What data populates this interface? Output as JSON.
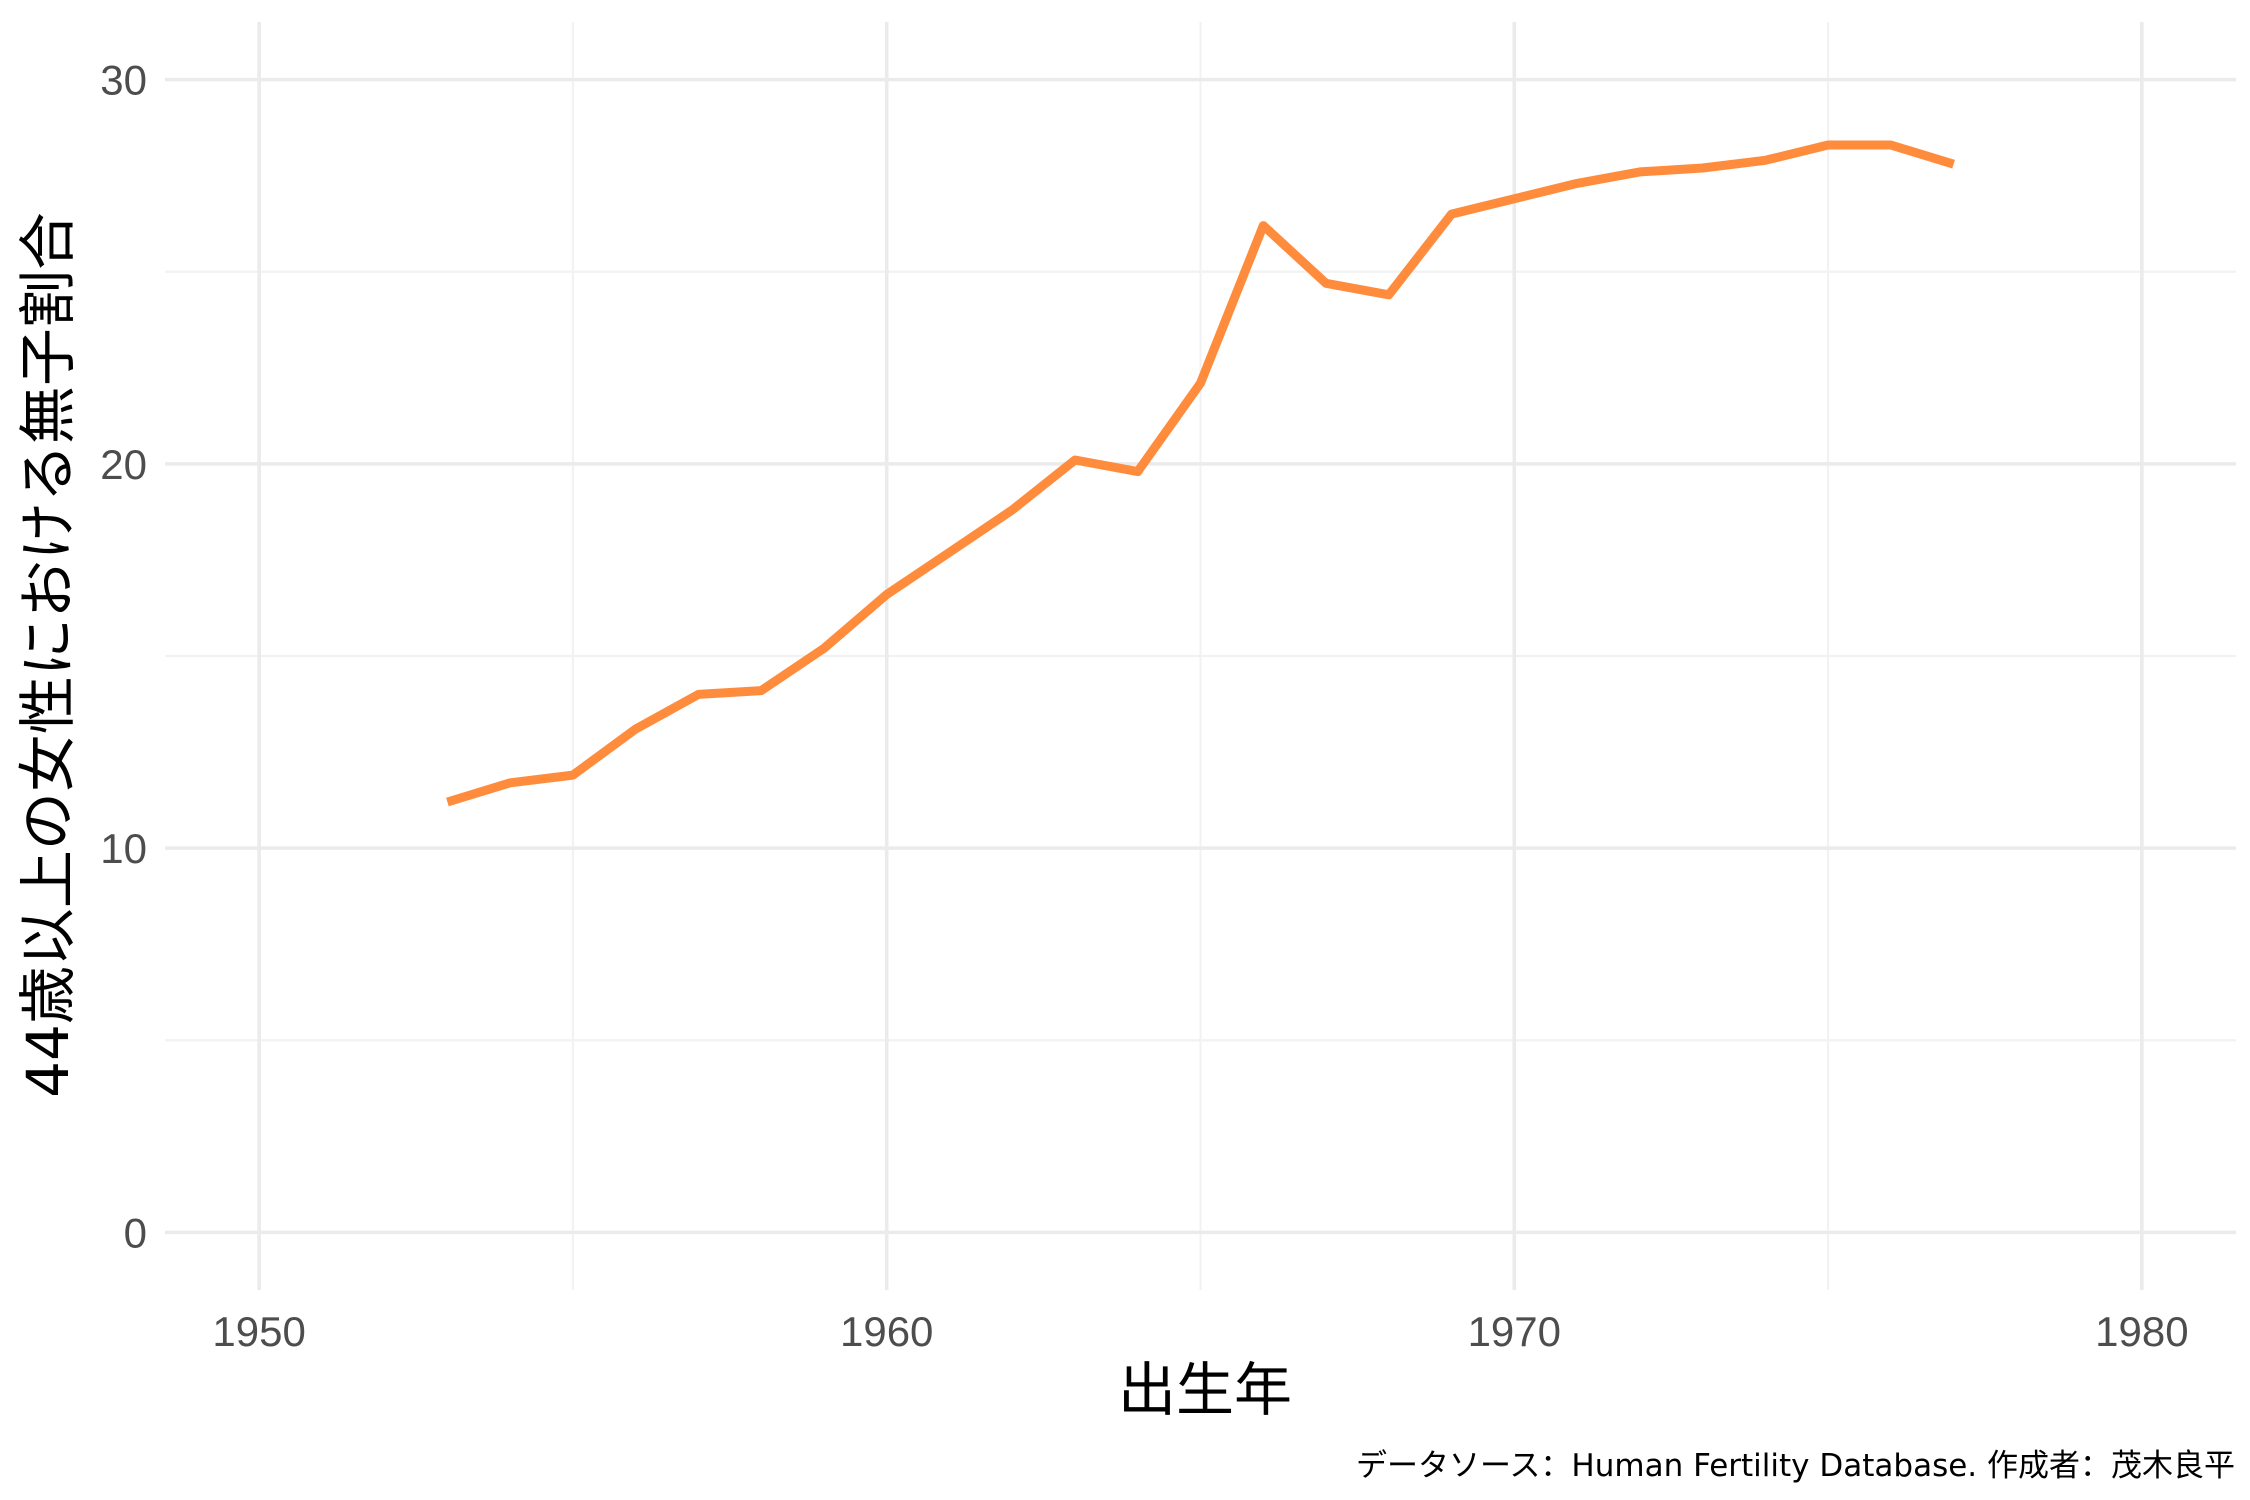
{
  "chart_data": {
    "type": "line",
    "title": "",
    "xlabel": "出生年",
    "ylabel": "44歳以上の女性における無子割合",
    "caption": "データソース：Human Fertility Database. 作成者：茂木良平",
    "xlim": [
      1948.5,
      1981.5
    ],
    "ylim": [
      -1.5,
      31.5
    ],
    "x_ticks": [
      1950,
      1960,
      1970,
      1980
    ],
    "y_ticks": [
      0,
      10,
      20,
      30
    ],
    "x_minor": [
      1955,
      1965,
      1975
    ],
    "y_minor": [
      5,
      15,
      25
    ],
    "grid": true,
    "legend": "none",
    "line_color": "#FF8C3C",
    "series": [
      {
        "x": [
          1953,
          1954,
          1955,
          1956,
          1957,
          1958,
          1959,
          1960,
          1961,
          1962,
          1963,
          1964,
          1965,
          1966,
          1967,
          1968,
          1969,
          1970,
          1971,
          1972,
          1973,
          1974,
          1975,
          1976,
          1977
        ],
        "values": [
          11.2,
          11.7,
          11.9,
          13.1,
          14.0,
          14.1,
          15.2,
          16.6,
          17.7,
          18.8,
          20.1,
          19.8,
          22.1,
          26.2,
          24.7,
          24.4,
          26.5,
          26.9,
          27.3,
          27.6,
          27.7,
          27.9,
          28.3,
          28.3,
          27.8
        ]
      }
    ]
  }
}
